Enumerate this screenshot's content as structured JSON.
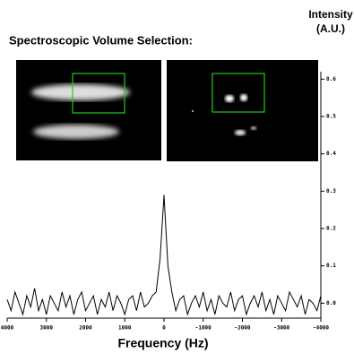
{
  "chart_data": {
    "type": "line",
    "annotation": "Spectroscopic Volume Selection:",
    "xlabel": "Frequency (Hz)",
    "ylabel": "Intensity (A.U.)",
    "color": "#000000",
    "x": [
      4000,
      3900,
      3800,
      3700,
      3600,
      3500,
      3400,
      3300,
      3200,
      3100,
      3000,
      2900,
      2800,
      2700,
      2600,
      2500,
      2400,
      2300,
      2200,
      2100,
      2000,
      1900,
      1800,
      1700,
      1600,
      1500,
      1400,
      1300,
      1200,
      1100,
      1000,
      900,
      800,
      700,
      600,
      500,
      400,
      300,
      200,
      100,
      0,
      -100,
      -200,
      -300,
      -400,
      -500,
      -600,
      -700,
      -800,
      -900,
      -1000,
      -1100,
      -1200,
      -1300,
      -1400,
      -1500,
      -1600,
      -1700,
      -1800,
      -1900,
      -2000,
      -2100,
      -2200,
      -2300,
      -2400,
      -2500,
      -2600,
      -2700,
      -2800,
      -2900,
      -3000,
      -3100,
      -3200,
      -3300,
      -3400,
      -3500,
      -3600,
      -3700,
      -3800,
      -3900,
      -4000
    ],
    "values": [
      0.01,
      -0.02,
      0.03,
      0.0,
      -0.03,
      0.02,
      -0.01,
      0.04,
      -0.02,
      0.01,
      -0.03,
      0.02,
      0.0,
      -0.02,
      0.03,
      -0.01,
      0.02,
      -0.03,
      0.01,
      0.03,
      -0.02,
      0.0,
      0.02,
      -0.03,
      0.01,
      -0.01,
      0.03,
      -0.02,
      0.02,
      0.0,
      -0.03,
      0.01,
      0.02,
      -0.02,
      0.03,
      -0.01,
      0.0,
      0.02,
      0.03,
      0.12,
      0.29,
      0.1,
      0.03,
      -0.02,
      0.01,
      0.02,
      -0.03,
      0.0,
      0.02,
      -0.01,
      0.03,
      -0.02,
      0.01,
      -0.03,
      0.02,
      0.0,
      -0.01,
      0.03,
      -0.02,
      0.01,
      0.02,
      -0.03,
      0.0,
      0.02,
      -0.01,
      0.03,
      -0.02,
      0.01,
      -0.03,
      0.02,
      0.0,
      -0.02,
      0.03,
      0.01,
      -0.01,
      0.02,
      -0.03,
      0.01,
      0.0,
      -0.02,
      0.02
    ],
    "xlim": [
      4000,
      -4000
    ],
    "xticks": [
      4000,
      3000,
      2000,
      1000,
      0,
      -1000,
      -2000,
      -3000,
      -4000
    ],
    "ylim": [
      -0.04,
      0.62
    ],
    "yticks": [
      {
        "value": 0,
        "label": "0.0"
      },
      0.1,
      0.2,
      0.3,
      0.4,
      0.5,
      0.6
    ]
  }
}
